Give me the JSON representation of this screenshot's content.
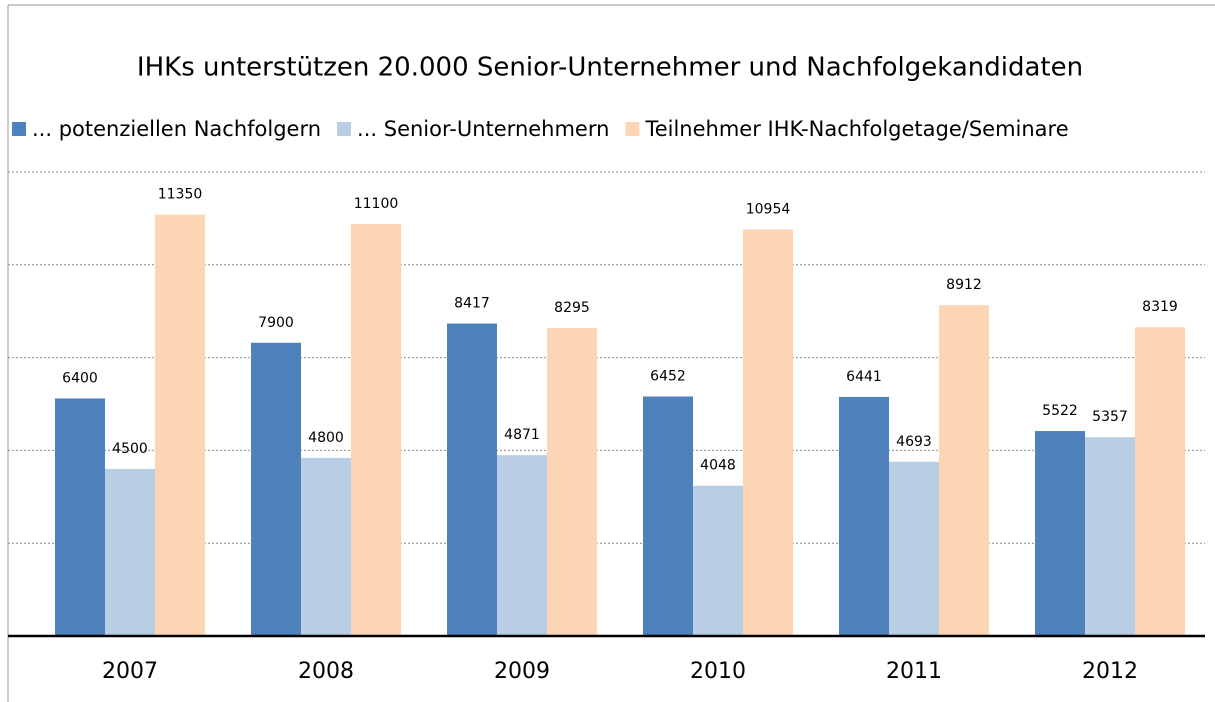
{
  "chart_data": {
    "type": "bar",
    "title": "IHKs unterstützen 20.000 Senior-Unternehmer und Nachfolgekandidaten",
    "categories": [
      "2007",
      "2008",
      "2009",
      "2010",
      "2011",
      "2012"
    ],
    "series": [
      {
        "name": "... potenziellen Nachfolgern",
        "color": "#4f81bd",
        "values": [
          6400,
          7900,
          8417,
          6452,
          6441,
          5522
        ]
      },
      {
        "name": "... Senior-Unternehmern",
        "color": "#b9cde5",
        "values": [
          4500,
          4800,
          4871,
          4048,
          4693,
          5357
        ]
      },
      {
        "name": "Teilnehmer IHK-Nachfolgetage/Seminare",
        "color": "#fcd5b5",
        "values": [
          11350,
          11100,
          8295,
          10954,
          8912,
          8319
        ]
      }
    ],
    "ylim": [
      0,
      12500
    ],
    "yticks": [
      0,
      2500,
      5000,
      7500,
      10000,
      12500
    ],
    "grid": true,
    "legend": "top"
  }
}
